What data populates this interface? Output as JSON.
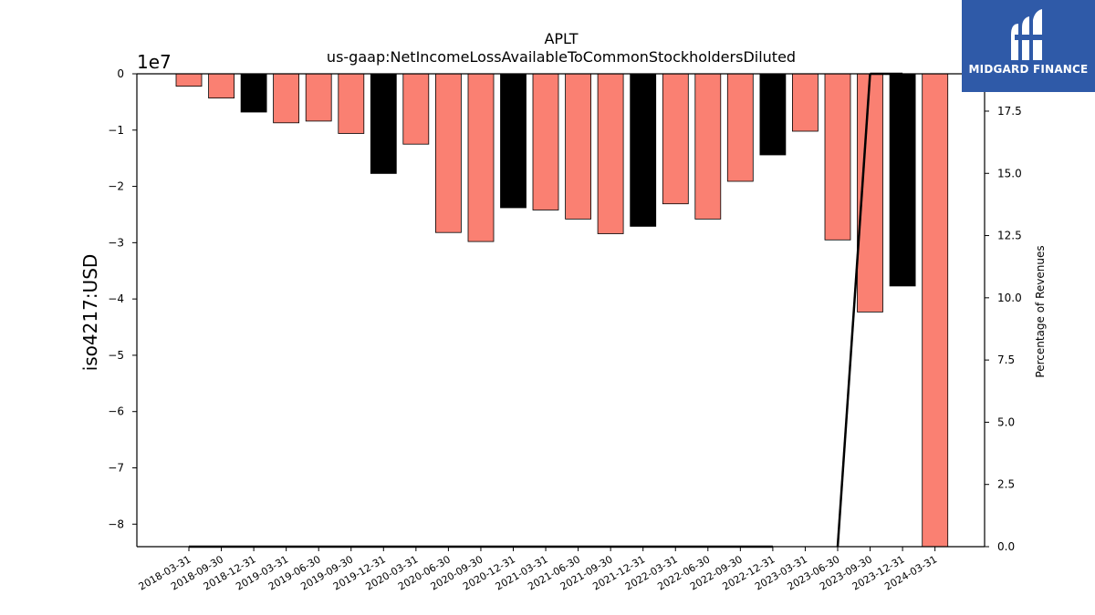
{
  "branding": {
    "logo_text": "MIDGARD FINANCE"
  },
  "chart_data": {
    "type": "bar",
    "title": "APLT",
    "subtitle": "us-gaap:NetIncomeLossAvailableToCommonStockholdersDiluted",
    "ylabel": "iso4217:USD",
    "y_scale_label": "1e7",
    "y2label": "Percentage of Revenues",
    "ylim": [
      -8.4,
      0
    ],
    "y2lim": [
      0,
      19
    ],
    "yticks": [
      "0",
      "−1",
      "−2",
      "−3",
      "−4",
      "−5",
      "−6",
      "−7",
      "−8"
    ],
    "y2ticks": [
      "0.0",
      "2.5",
      "5.0",
      "7.5",
      "10.0",
      "12.5",
      "15.0",
      "17.5"
    ],
    "categories": [
      "2018-03-31",
      "2018-09-30",
      "2018-12-31",
      "2019-03-31",
      "2019-06-30",
      "2019-09-30",
      "2019-12-31",
      "2020-03-31",
      "2020-06-30",
      "2020-09-30",
      "2020-12-31",
      "2021-03-31",
      "2021-06-30",
      "2021-09-30",
      "2021-12-31",
      "2022-03-31",
      "2022-06-30",
      "2022-09-30",
      "2022-12-31",
      "2023-03-31",
      "2023-06-30",
      "2023-09-30",
      "2023-12-31",
      "2024-03-31"
    ],
    "values": [
      -0.22,
      -0.43,
      -0.68,
      -0.87,
      -0.84,
      -1.06,
      -1.77,
      -1.25,
      -2.82,
      -2.98,
      -2.38,
      -2.42,
      -2.58,
      -2.84,
      -2.71,
      -2.31,
      -2.58,
      -1.91,
      -1.44,
      -1.02,
      -2.95,
      -4.23,
      -3.77,
      -8.4
    ],
    "is_q4": [
      false,
      false,
      true,
      false,
      false,
      false,
      true,
      false,
      false,
      false,
      true,
      false,
      false,
      false,
      true,
      false,
      false,
      false,
      true,
      false,
      false,
      false,
      true,
      false
    ],
    "colors": {
      "quarter": "#fa8072",
      "annual": "#000000"
    },
    "pct_revenue_line": [
      0,
      0,
      0,
      0,
      0,
      0,
      0,
      0,
      0,
      0,
      0,
      0,
      0,
      0,
      0,
      0,
      0,
      0,
      0,
      null,
      0,
      19,
      19,
      null
    ]
  }
}
